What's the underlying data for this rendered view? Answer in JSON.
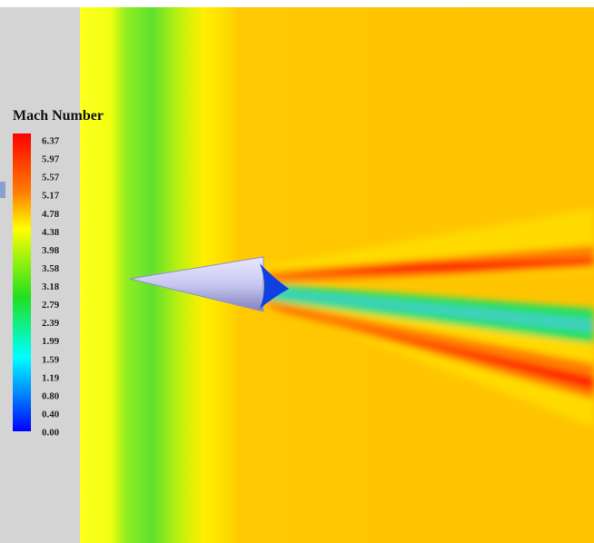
{
  "legend": {
    "title": "Mach Number",
    "labels": [
      "6.37",
      "5.97",
      "5.57",
      "5.17",
      "4.78",
      "4.38",
      "3.98",
      "3.58",
      "3.18",
      "2.79",
      "2.39",
      "1.99",
      "1.59",
      "1.19",
      "0.80",
      "0.40",
      "0.00"
    ]
  }
}
